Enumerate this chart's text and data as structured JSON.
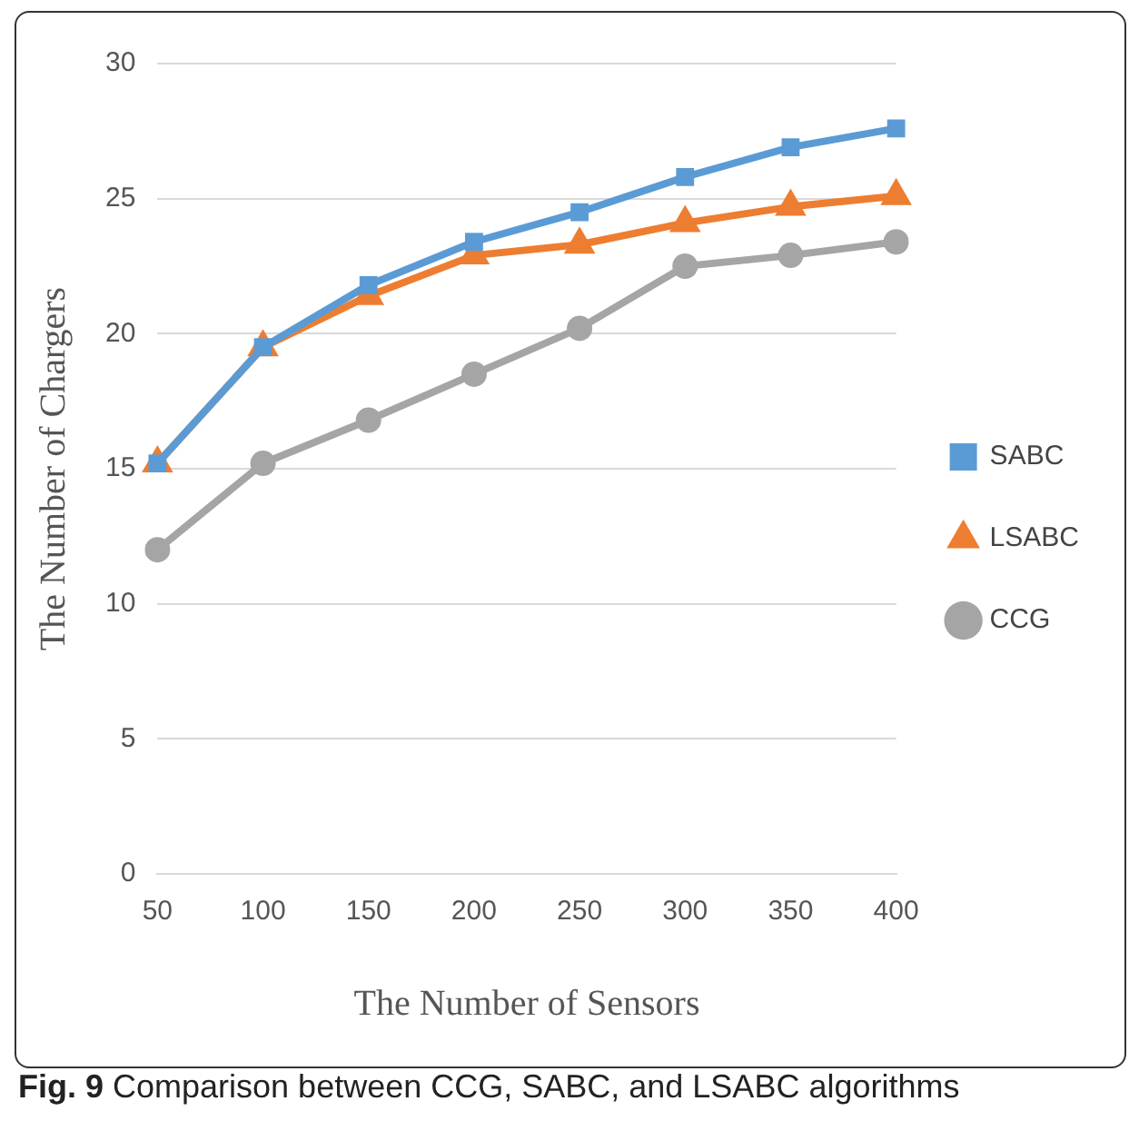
{
  "chart_data": {
    "type": "line",
    "xlabel": "The Number of Sensors",
    "ylabel": "The Number of Chargers",
    "categories": [
      "50",
      "100",
      "150",
      "200",
      "250",
      "300",
      "350",
      "400"
    ],
    "ylim": [
      0,
      30
    ],
    "yticks": [
      0,
      5,
      10,
      15,
      20,
      25,
      30
    ],
    "grid": "y",
    "legend": "right",
    "line_style": "solid",
    "series": [
      {
        "name": "SABC",
        "color": "#5b9bd5",
        "marker": "square",
        "values": [
          15.2,
          19.5,
          21.8,
          23.4,
          24.5,
          25.8,
          26.9,
          27.6
        ]
      },
      {
        "name": "LSABC",
        "color": "#ed7d31",
        "marker": "triangle",
        "values": [
          15.2,
          19.5,
          21.4,
          22.9,
          23.3,
          24.1,
          24.7,
          25.1
        ]
      },
      {
        "name": "CCG",
        "color": "#a5a5a5",
        "marker": "circle",
        "values": [
          12.0,
          15.2,
          16.8,
          18.5,
          20.2,
          22.5,
          22.9,
          23.4
        ]
      }
    ],
    "annotations": [
      "Fig. 9 Comparison between CCG, SABC, and LSABC algorithms"
    ]
  }
}
